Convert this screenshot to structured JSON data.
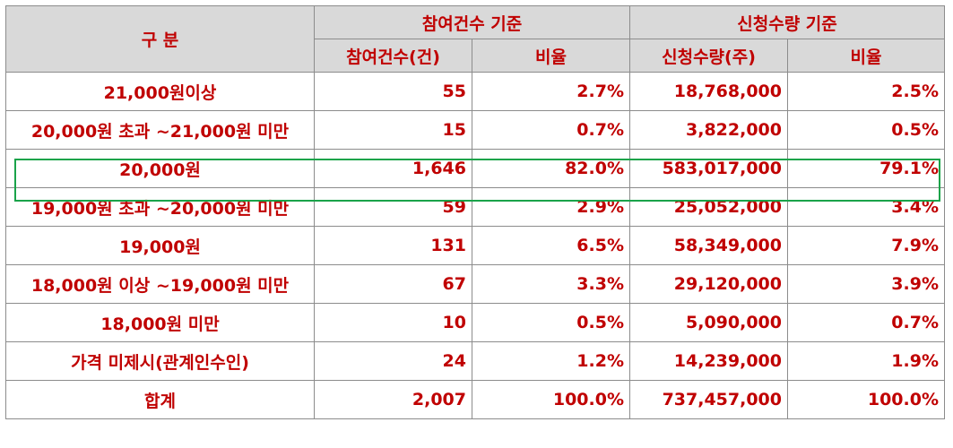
{
  "header": {
    "category": "구 분",
    "group_participation": "참여건수 기준",
    "group_application": "신청수량 기준",
    "col_count": "참여건수(건)",
    "col_ratio1": "비율",
    "col_qty": "신청수량(주)",
    "col_ratio2": "비율"
  },
  "rows": [
    {
      "label": "21,000원이상",
      "count": "55",
      "ratio1": "2.7%",
      "qty": "18,768,000",
      "ratio2": "2.5%"
    },
    {
      "label": "20,000원 초과 ~21,000원 미만",
      "count": "15",
      "ratio1": "0.7%",
      "qty": "3,822,000",
      "ratio2": "0.5%"
    },
    {
      "label": "20,000원",
      "count": "1,646",
      "ratio1": "82.0%",
      "qty": "583,017,000",
      "ratio2": "79.1%"
    },
    {
      "label": "19,000원 초과 ~20,000원 미만",
      "count": "59",
      "ratio1": "2.9%",
      "qty": "25,052,000",
      "ratio2": "3.4%"
    },
    {
      "label": "19,000원",
      "count": "131",
      "ratio1": "6.5%",
      "qty": "58,349,000",
      "ratio2": "7.9%"
    },
    {
      "label": "18,000원 이상 ~19,000원 미만",
      "count": "67",
      "ratio1": "3.3%",
      "qty": "29,120,000",
      "ratio2": "3.9%"
    },
    {
      "label": "18,000원 미만",
      "count": "10",
      "ratio1": "0.5%",
      "qty": "5,090,000",
      "ratio2": "0.7%"
    },
    {
      "label": "가격 미제시(관계인수인)",
      "count": "24",
      "ratio1": "1.2%",
      "qty": "14,239,000",
      "ratio2": "1.9%"
    },
    {
      "label": "합계",
      "count": "2,007",
      "ratio1": "100.0%",
      "qty": "737,457,000",
      "ratio2": "100.0%"
    }
  ],
  "colors": {
    "text": "#c00000",
    "header_bg": "#d9d9d9",
    "border": "#8c8c8c",
    "highlight_box": "#1aa34a"
  }
}
